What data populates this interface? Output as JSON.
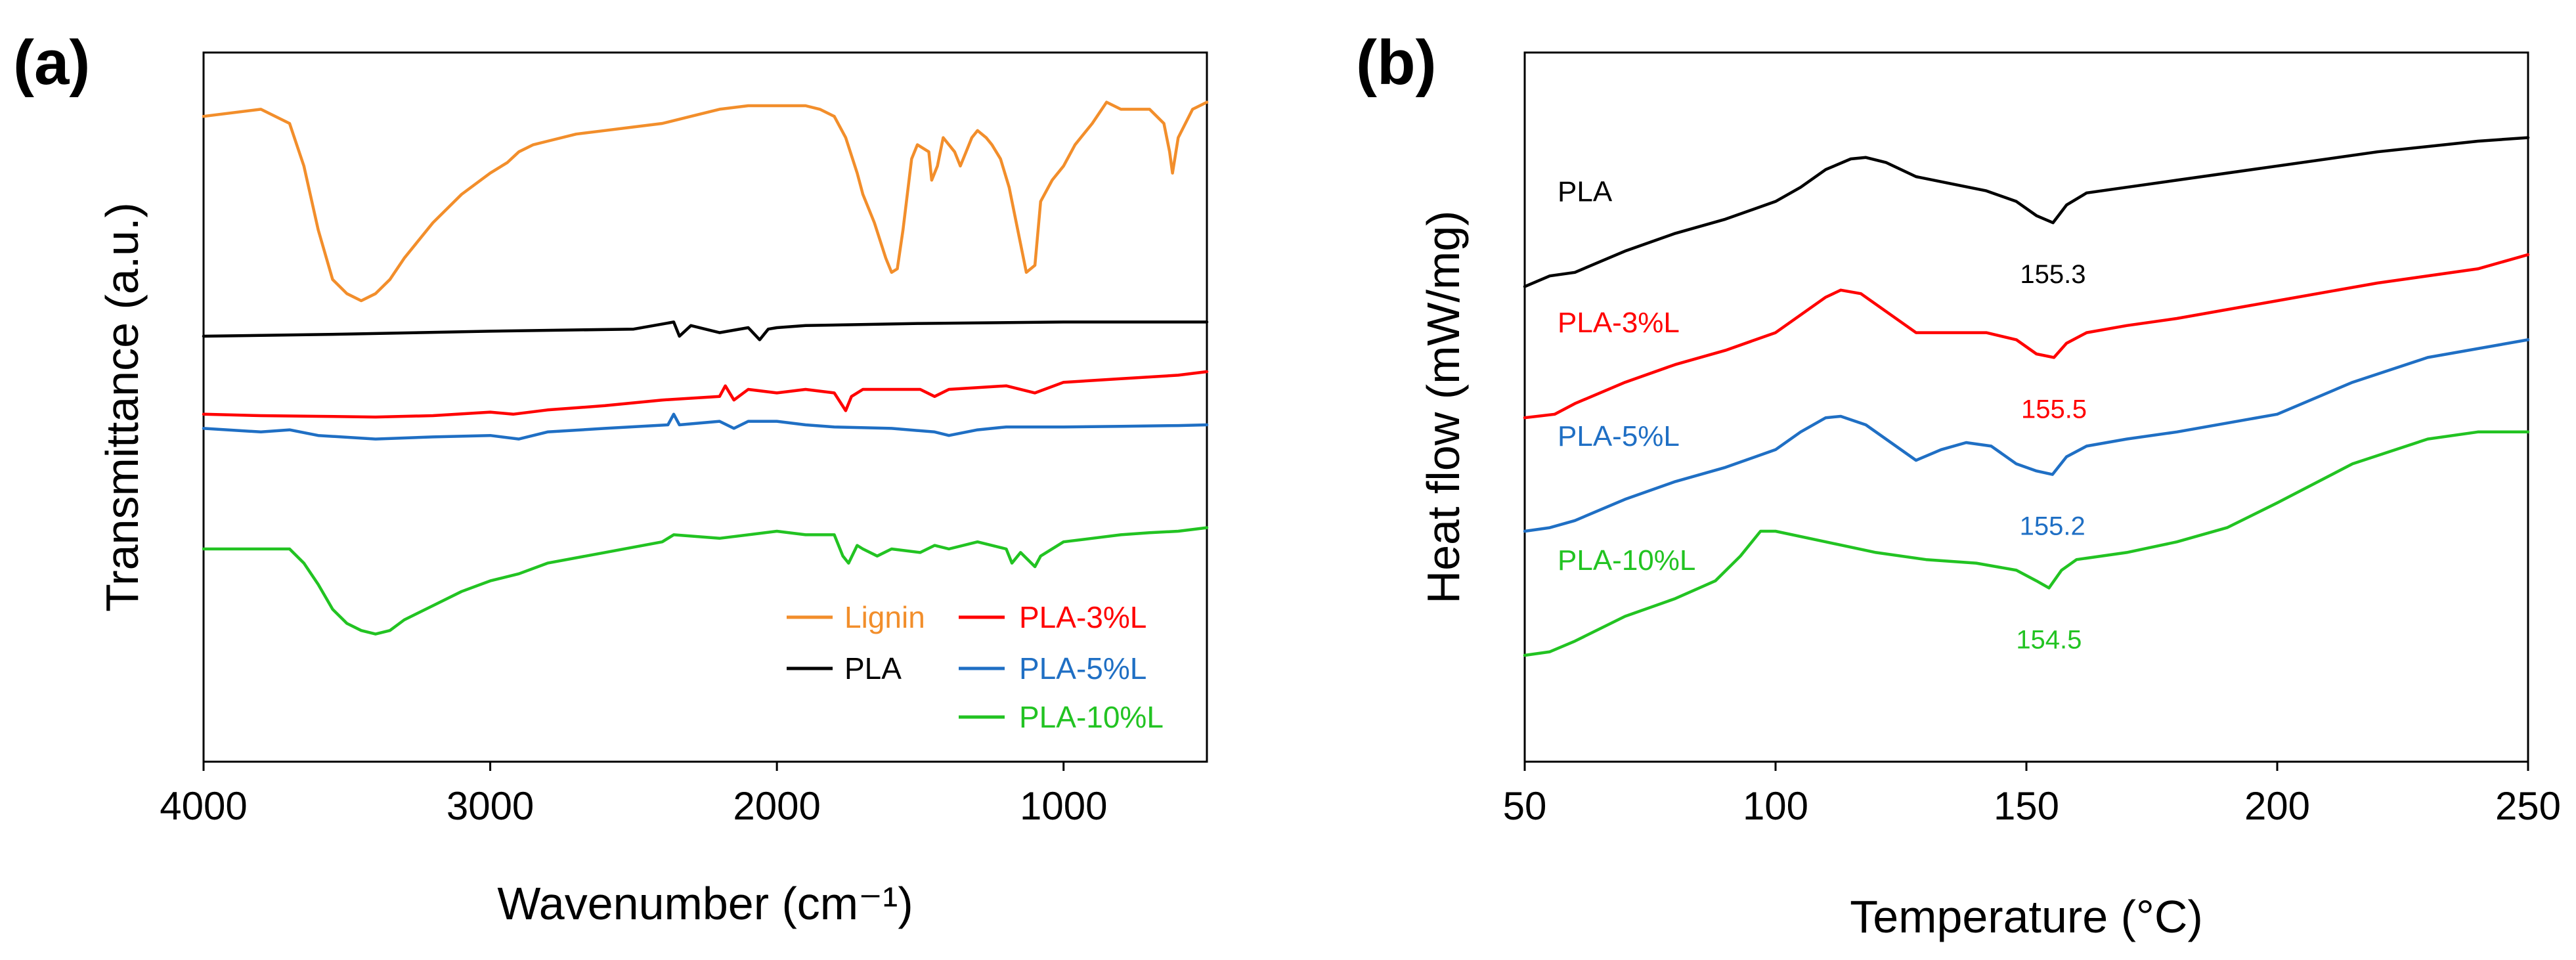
{
  "chart_data": [
    {
      "type": "line",
      "panel_label": "(a)",
      "title": "",
      "xlabel": "Wavenumber (cm⁻¹)",
      "ylabel": "Transmittance (a.u.)",
      "xlim": [
        4000,
        500
      ],
      "x_reversed": true,
      "ylim": [
        0,
        100
      ],
      "xticks": [
        4000,
        3000,
        2000,
        1000
      ],
      "xtick_labels": [
        "4000",
        "3000",
        "2000",
        "1000"
      ],
      "y_ticks_shown": false,
      "grid": false,
      "legend": {
        "placement": "bottom-right",
        "entries": [
          {
            "label": "Lignin",
            "color": "#f28e2b"
          },
          {
            "label": "PLA-3%L",
            "color": "#ff0000"
          },
          {
            "label": "PLA",
            "color": "#000000"
          },
          {
            "label": "PLA-5%L",
            "color": "#1f6fc4"
          },
          {
            "label": "PLA-10%L",
            "color": "#22c322"
          }
        ]
      },
      "series": [
        {
          "name": "Lignin",
          "color": "#f28e2b",
          "x": [
            4000,
            3800,
            3700,
            3650,
            3600,
            3550,
            3500,
            3450,
            3400,
            3350,
            3300,
            3200,
            3100,
            3000,
            2940,
            2900,
            2850,
            2800,
            2700,
            2600,
            2500,
            2400,
            2300,
            2200,
            2100,
            2000,
            1900,
            1850,
            1800,
            1760,
            1720,
            1700,
            1660,
            1620,
            1600,
            1580,
            1560,
            1530,
            1510,
            1470,
            1460,
            1440,
            1420,
            1380,
            1360,
            1340,
            1320,
            1300,
            1270,
            1250,
            1220,
            1190,
            1160,
            1130,
            1100,
            1080,
            1040,
            1000,
            960,
            900,
            850,
            800,
            700,
            650,
            630,
            620,
            600,
            550,
            500
          ],
          "y": [
            91,
            92,
            90,
            84,
            75,
            68,
            66,
            65,
            66,
            68,
            71,
            76,
            80,
            83,
            84.5,
            86,
            87,
            87.5,
            88.5,
            89,
            89.5,
            90,
            91,
            92,
            92.5,
            92.5,
            92.5,
            92,
            91,
            88,
            83,
            80,
            76,
            71,
            69,
            69.5,
            75,
            85,
            87,
            86,
            82,
            84,
            88,
            86,
            84,
            86,
            88,
            89,
            88,
            87,
            85,
            81,
            75,
            69,
            70,
            79,
            82,
            84,
            87,
            90,
            93,
            92,
            92,
            90,
            86,
            83,
            88,
            92,
            93
          ]
        },
        {
          "name": "PLA",
          "color": "#000000",
          "x": [
            4000,
            3500,
            3000,
            2500,
            2360,
            2340,
            2300,
            2200,
            2100,
            2060,
            2030,
            2000,
            1900,
            1500,
            1000,
            500
          ],
          "y": [
            60,
            60.3,
            60.7,
            61,
            62,
            60,
            61.5,
            60.5,
            61.2,
            59.5,
            61,
            61.2,
            61.5,
            61.8,
            62,
            62
          ]
        },
        {
          "name": "PLA-3%L",
          "color": "#ff0000",
          "x": [
            4000,
            3800,
            3600,
            3400,
            3200,
            3000,
            2920,
            2800,
            2600,
            2400,
            2200,
            2180,
            2150,
            2100,
            2000,
            1900,
            1800,
            1760,
            1740,
            1700,
            1500,
            1450,
            1400,
            1200,
            1100,
            1000,
            800,
            600,
            500
          ],
          "y": [
            49,
            48.8,
            48.7,
            48.6,
            48.8,
            49.3,
            49,
            49.6,
            50.2,
            51,
            51.5,
            53,
            51,
            52.5,
            52,
            52.5,
            52,
            49.5,
            51.5,
            52.5,
            52.5,
            51.5,
            52.5,
            53,
            52,
            53.5,
            54,
            54.5,
            55
          ]
        },
        {
          "name": "PLA-5%L",
          "color": "#1f6fc4",
          "x": [
            4000,
            3800,
            3700,
            3600,
            3400,
            3200,
            3000,
            2900,
            2800,
            2600,
            2380,
            2360,
            2340,
            2200,
            2150,
            2100,
            2000,
            1900,
            1800,
            1600,
            1450,
            1400,
            1300,
            1200,
            1000,
            800,
            600,
            500
          ],
          "y": [
            47,
            46.5,
            46.8,
            46,
            45.5,
            45.8,
            46,
            45.5,
            46.5,
            47,
            47.5,
            49,
            47.5,
            48,
            47,
            48,
            48,
            47.5,
            47.2,
            47,
            46.5,
            46,
            46.8,
            47.2,
            47.2,
            47.3,
            47.4,
            47.5
          ]
        },
        {
          "name": "PLA-10%L",
          "color": "#22c322",
          "x": [
            4000,
            3800,
            3700,
            3650,
            3600,
            3550,
            3500,
            3450,
            3400,
            3350,
            3300,
            3200,
            3100,
            3000,
            2900,
            2800,
            2600,
            2400,
            2360,
            2200,
            2000,
            1900,
            1800,
            1770,
            1750,
            1720,
            1700,
            1650,
            1600,
            1500,
            1450,
            1400,
            1300,
            1200,
            1180,
            1150,
            1100,
            1080,
            1000,
            900,
            800,
            700,
            600,
            500
          ],
          "y": [
            30,
            30,
            30,
            28,
            25,
            21.5,
            19.5,
            18.5,
            18,
            18.5,
            20,
            22,
            24,
            25.5,
            26.5,
            28,
            29.5,
            31,
            32,
            31.5,
            32.5,
            32,
            32,
            29,
            28,
            30.5,
            30,
            29,
            30,
            29.5,
            30.5,
            30,
            31,
            30,
            28,
            29.5,
            27.5,
            29,
            31,
            31.5,
            32,
            32.3,
            32.5,
            33
          ]
        }
      ]
    },
    {
      "type": "line",
      "panel_label": "(b)",
      "title": "",
      "xlabel": "Temperature (°C)",
      "ylabel": "Heat flow (mW/mg)",
      "xlim": [
        50,
        250
      ],
      "ylim": [
        0,
        100
      ],
      "xticks": [
        50,
        100,
        150,
        200,
        250
      ],
      "xtick_labels": [
        "50",
        "100",
        "150",
        "200",
        "250"
      ],
      "y_ticks_shown": false,
      "grid": false,
      "series": [
        {
          "name": "PLA",
          "label": "PLA",
          "color": "#000000",
          "peak_label": "155.3",
          "peak_x": 155.3,
          "x": [
            50,
            55,
            60,
            65,
            70,
            80,
            90,
            100,
            105,
            110,
            115,
            118,
            122,
            128,
            135,
            142,
            148,
            152,
            155.3,
            158,
            162,
            170,
            180,
            200,
            220,
            240,
            250
          ],
          "y": [
            67,
            68.5,
            69,
            70.5,
            72,
            74.5,
            76.5,
            79,
            81,
            83.5,
            85,
            85.2,
            84.5,
            82.5,
            81.5,
            80.5,
            79,
            77,
            76,
            78.5,
            80.2,
            81,
            82,
            84,
            86,
            87.5,
            88
          ]
        },
        {
          "name": "PLA-3%L",
          "label": "PLA-3%L",
          "color": "#ff0000",
          "peak_label": "155.5",
          "peak_x": 155.5,
          "x": [
            50,
            56,
            60,
            70,
            80,
            90,
            100,
            105,
            110,
            113,
            117,
            122,
            128,
            135,
            142,
            148,
            152,
            155.5,
            158,
            162,
            170,
            180,
            200,
            220,
            240,
            250
          ],
          "y": [
            48.5,
            49,
            50.5,
            53.5,
            56,
            58,
            60.5,
            63,
            65.5,
            66.5,
            66,
            63.5,
            60.5,
            60.5,
            60.5,
            59.5,
            57.5,
            57,
            59,
            60.5,
            61.5,
            62.5,
            65,
            67.5,
            69.5,
            71.5
          ]
        },
        {
          "name": "PLA-5%L",
          "label": "PLA-5%L",
          "color": "#1f6fc4",
          "peak_label": "155.2",
          "peak_x": 155.2,
          "x": [
            50,
            55,
            60,
            70,
            80,
            90,
            100,
            105,
            110,
            113,
            118,
            123,
            128,
            133,
            138,
            143,
            148,
            152,
            155.2,
            158,
            162,
            170,
            180,
            200,
            215,
            230,
            250
          ],
          "y": [
            32.5,
            33,
            34,
            37,
            39.5,
            41.5,
            44,
            46.5,
            48.5,
            48.7,
            47.5,
            45,
            42.5,
            44,
            45,
            44.5,
            42,
            41,
            40.5,
            43,
            44.5,
            45.5,
            46.5,
            49,
            53.5,
            57,
            59.5
          ]
        },
        {
          "name": "PLA-10%L",
          "label": "PLA-10%L",
          "color": "#22c322",
          "peak_label": "154.5",
          "peak_x": 154.5,
          "x": [
            50,
            55,
            60,
            70,
            80,
            88,
            93,
            97,
            100,
            110,
            120,
            130,
            140,
            148,
            152,
            154.5,
            157,
            160,
            170,
            180,
            190,
            200,
            215,
            230,
            240,
            250
          ],
          "y": [
            15,
            15.5,
            17,
            20.5,
            23,
            25.5,
            29,
            32.5,
            32.5,
            31,
            29.5,
            28.5,
            28,
            27,
            25.5,
            24.5,
            27,
            28.5,
            29.5,
            31,
            33,
            36.5,
            42,
            45.5,
            46.5,
            46.5
          ]
        }
      ]
    }
  ]
}
